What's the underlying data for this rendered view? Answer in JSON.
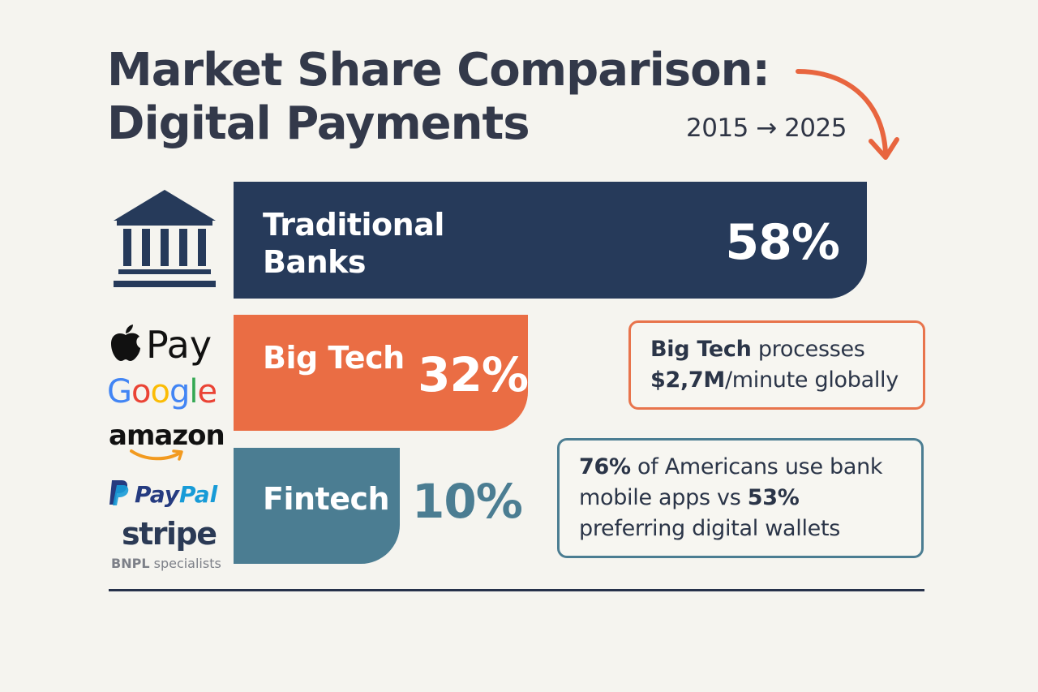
{
  "header": {
    "title_line1": "Market Share Comparison:",
    "title_line2": "Digital Payments",
    "period": "2015 → 2025"
  },
  "chart_data": {
    "type": "bar",
    "orientation": "horizontal",
    "title": "Market Share Comparison: Digital Payments",
    "categories": [
      "Traditional Banks",
      "Big Tech",
      "Fintech"
    ],
    "values": [
      58,
      32,
      10
    ],
    "value_labels": [
      "58%",
      "32%",
      "10%"
    ],
    "unit": "%",
    "colors": [
      "#263a5a",
      "#ea6d44",
      "#4b7d92"
    ],
    "grid": false,
    "legend": false
  },
  "bars": [
    {
      "label_line1": "Traditional",
      "label_line2": "Banks",
      "value": "58%"
    },
    {
      "label_line1": "Big Tech",
      "label_line2": "",
      "value": "32%"
    },
    {
      "label_line1": "Fintech",
      "label_line2": "",
      "value": "10%"
    }
  ],
  "logos": {
    "apple_pay": "Pay",
    "google": [
      "G",
      "o",
      "o",
      "g",
      "l",
      "e"
    ],
    "amazon": "amazon",
    "paypal_1": "Pay",
    "paypal_2": "Pal",
    "stripe": "stripe",
    "bnpl_bold": "BNPL",
    "bnpl_rest": " specialists"
  },
  "callouts": [
    {
      "bold1": "Big Tech",
      "text1": " processes",
      "bold2": "$2,7M",
      "text2": "/minute globally",
      "border_color": "#e8744c"
    },
    {
      "bold1": "76%",
      "text1": " of Americans use bank",
      "text2": "mobile apps vs ",
      "bold2": "53%",
      "text3": "preferring digital wallets",
      "border_color": "#4b7d92"
    }
  ],
  "colors": {
    "background": "#f5f4ef",
    "banks": "#263a5a",
    "big_tech": "#ea6d44",
    "fintech": "#4b7d92",
    "arrow": "#e8653f",
    "google_blue": "#4285f4",
    "google_red": "#ea4335",
    "google_yellow": "#fbbc05",
    "google_green": "#34a853"
  },
  "icons": [
    "bank-icon",
    "apple-icon",
    "amazon-smile-icon",
    "paypal-icon",
    "curved-arrow-icon"
  ]
}
